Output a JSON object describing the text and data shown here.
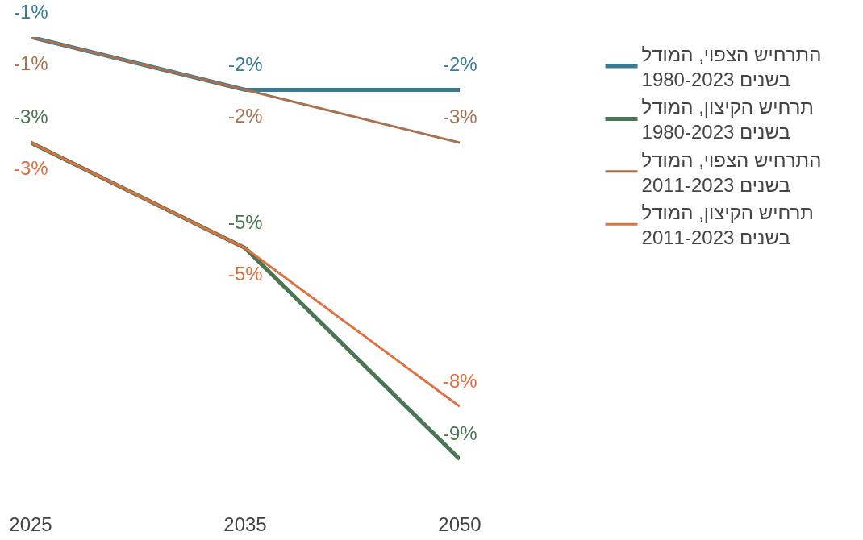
{
  "chart_data": {
    "type": "line",
    "categories": [
      "2025",
      "2035",
      "2050"
    ],
    "series": [
      {
        "name": "התרחיש הצפוי, המודל בשנים 1980-2023",
        "color": "#3a7a93",
        "values": [
          -1,
          -2,
          -2
        ],
        "value_labels": [
          "-1%",
          "-2%",
          "-2%"
        ]
      },
      {
        "name": "תרחיש הקיצון, המודל בשנים 1980-2023",
        "color": "#4a7654",
        "values": [
          -3,
          -5,
          -9
        ],
        "value_labels": [
          "-3%",
          "-5%",
          "-9%"
        ]
      },
      {
        "name": "התרחיש הצפוי, המודל בשנים 2011-2023",
        "color": "#a87250",
        "values": [
          -1,
          -2,
          -3
        ],
        "value_labels": [
          "-1%",
          "-2%",
          "-3%"
        ]
      },
      {
        "name": "תרחיש הקיצון, המודל בשנים 2011-2023",
        "color": "#e0703f",
        "values": [
          -3,
          -5,
          -8
        ],
        "value_labels": [
          "-3%",
          "-5%",
          "-8%"
        ]
      }
    ],
    "legend": "right",
    "grid": false,
    "marker": "none",
    "line_style": "solid",
    "tick_labels": "x"
  }
}
